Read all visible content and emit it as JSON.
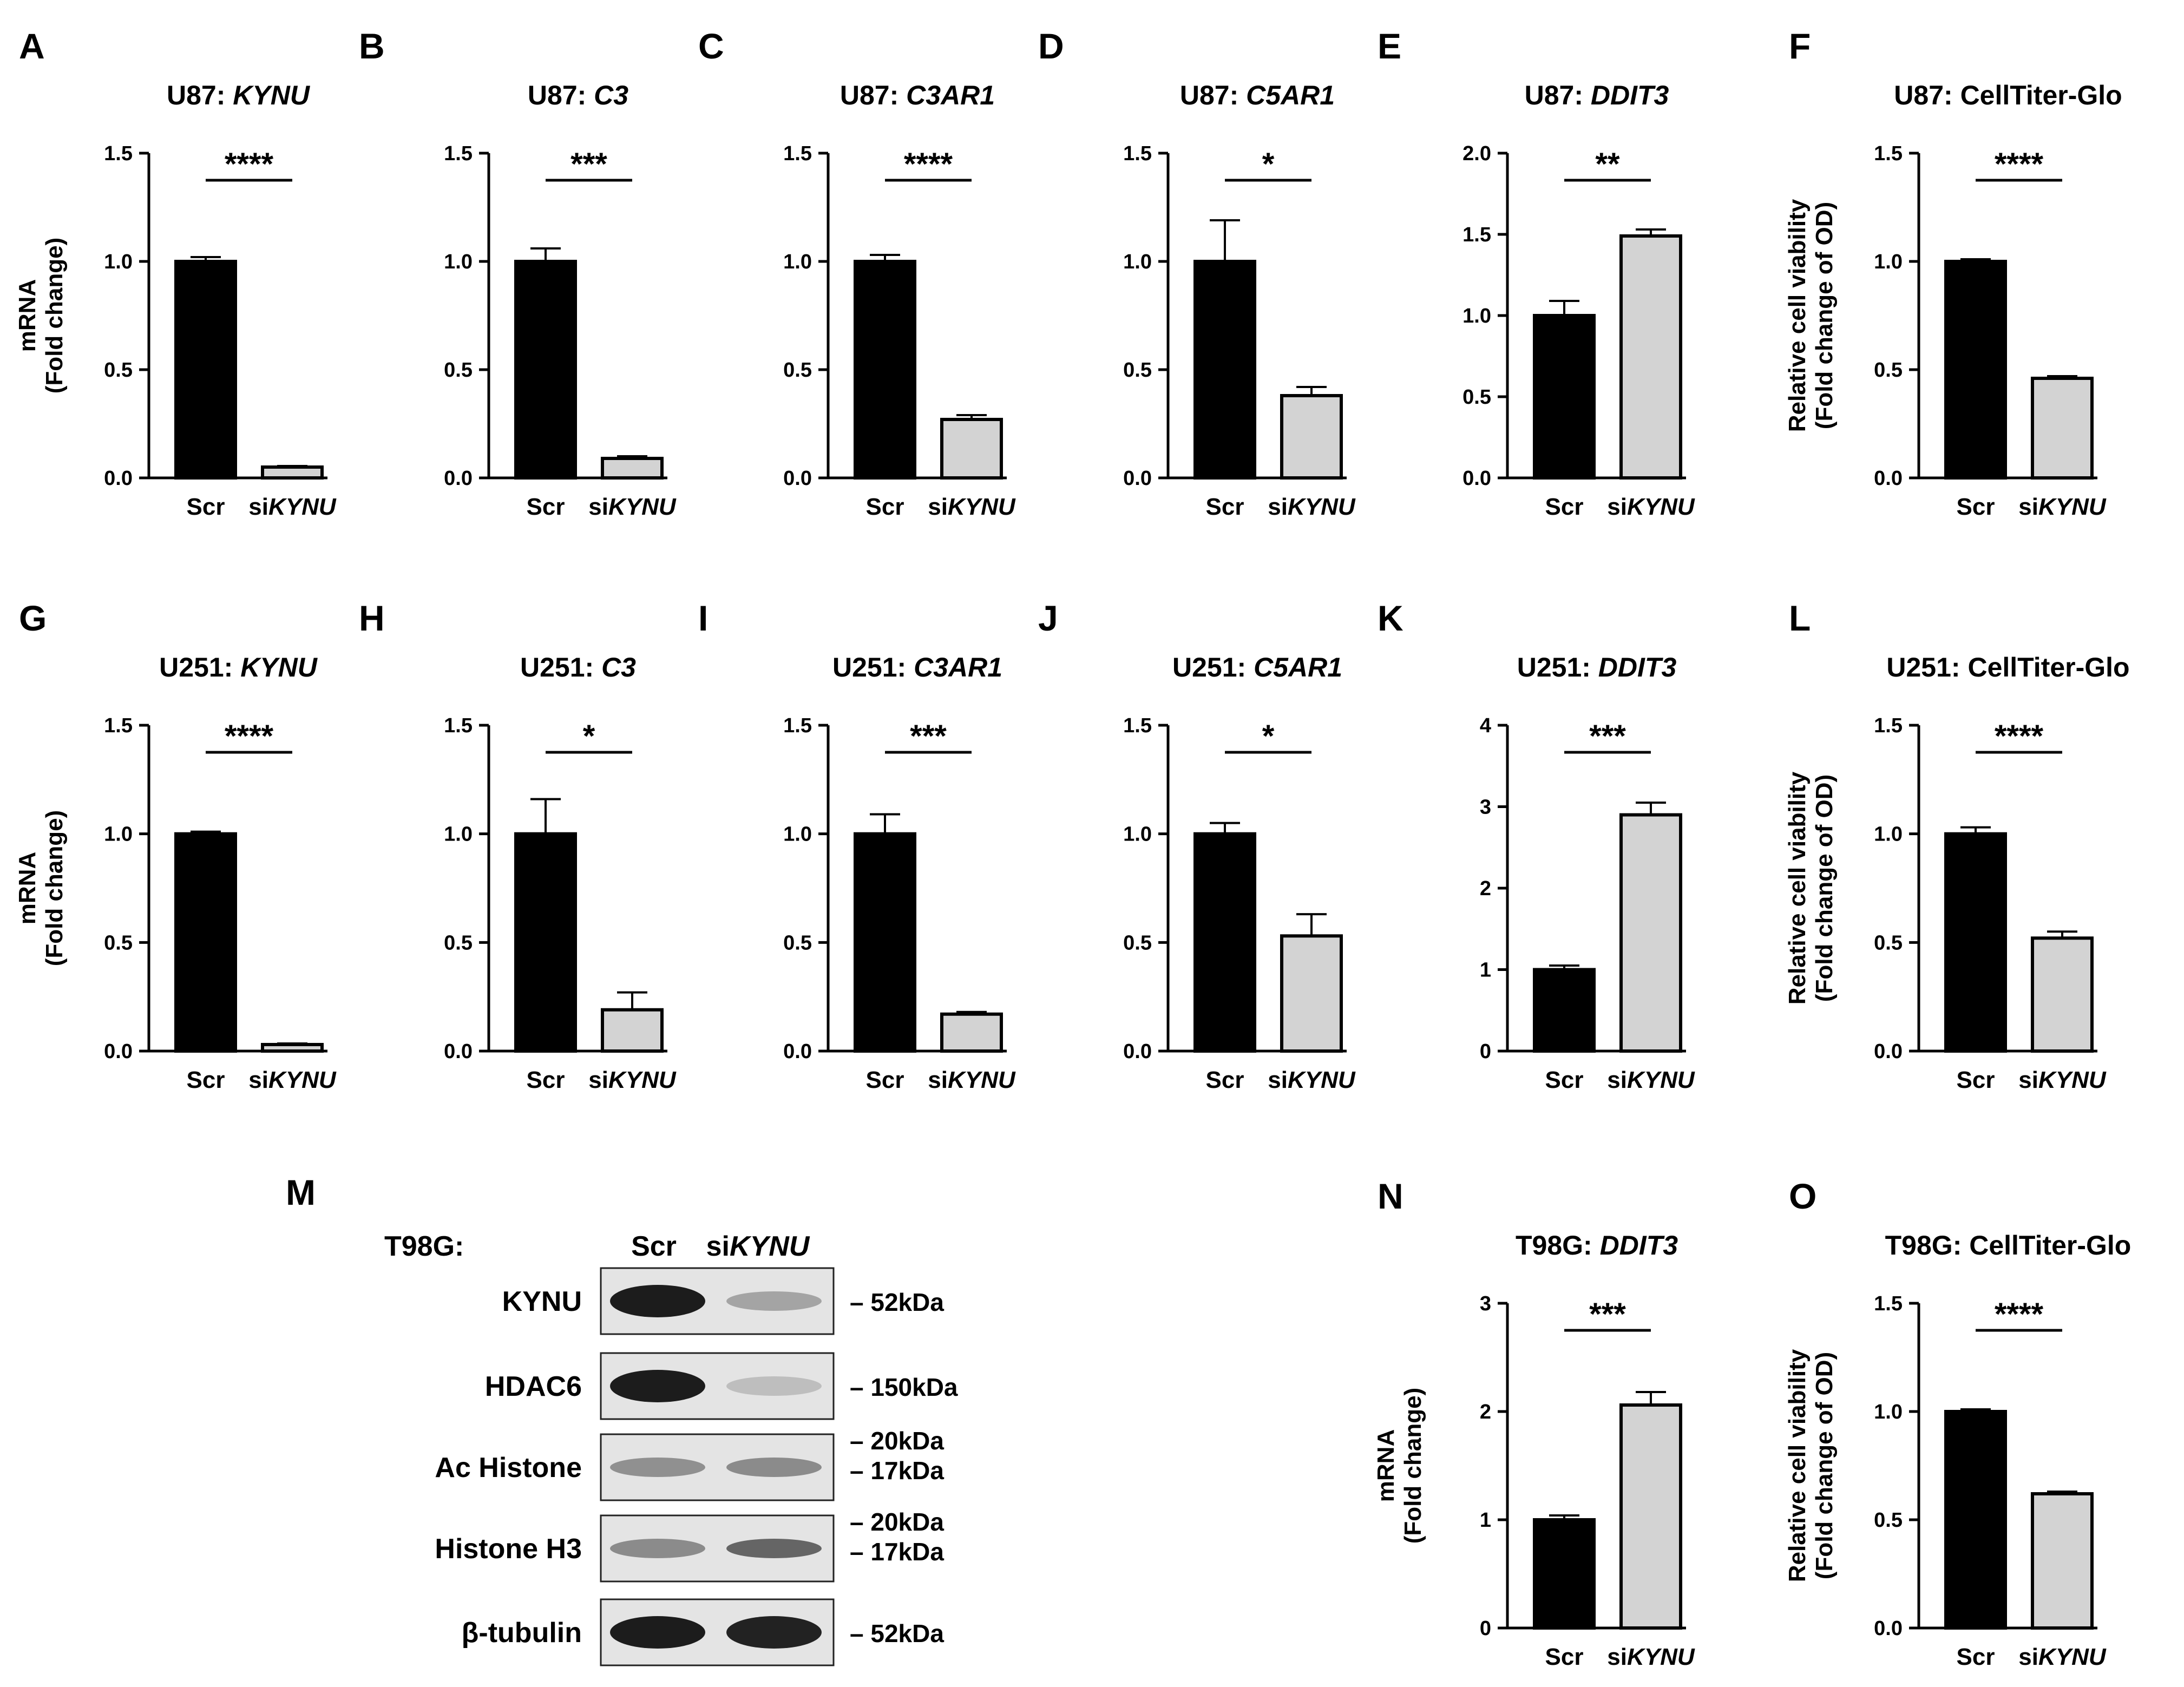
{
  "chart_data": [
    {
      "label": "A",
      "type": "bar",
      "title_prefix": "U87: ",
      "title_gene": "KYNU",
      "ylabel": [
        "mRNA",
        "(Fold change)"
      ],
      "categories": [
        {
          "prefix": "Scr",
          "gene": ""
        },
        {
          "prefix": "si",
          "gene": "KYNU"
        }
      ],
      "values": [
        1.0,
        0.05
      ],
      "errors": [
        0.02,
        0.005
      ],
      "ylim": [
        0,
        1.5
      ],
      "yticks": [
        "0.0",
        "0.5",
        "1.0",
        "1.5"
      ],
      "significance": "****"
    },
    {
      "label": "B",
      "type": "bar",
      "title_prefix": "U87: ",
      "title_gene": "C3",
      "ylabel": [],
      "categories": [
        {
          "prefix": "Scr",
          "gene": ""
        },
        {
          "prefix": "si",
          "gene": "KYNU"
        }
      ],
      "values": [
        1.0,
        0.09
      ],
      "errors": [
        0.06,
        0.01
      ],
      "ylim": [
        0,
        1.5
      ],
      "yticks": [
        "0.0",
        "0.5",
        "1.0",
        "1.5"
      ],
      "significance": "***"
    },
    {
      "label": "C",
      "type": "bar",
      "title_prefix": "U87: ",
      "title_gene": "C3AR1",
      "ylabel": [],
      "categories": [
        {
          "prefix": "Scr",
          "gene": ""
        },
        {
          "prefix": "si",
          "gene": "KYNU"
        }
      ],
      "values": [
        1.0,
        0.27
      ],
      "errors": [
        0.03,
        0.02
      ],
      "ylim": [
        0,
        1.5
      ],
      "yticks": [
        "0.0",
        "0.5",
        "1.0",
        "1.5"
      ],
      "significance": "****"
    },
    {
      "label": "D",
      "type": "bar",
      "title_prefix": "U87: ",
      "title_gene": "C5AR1",
      "ylabel": [],
      "categories": [
        {
          "prefix": "Scr",
          "gene": ""
        },
        {
          "prefix": "si",
          "gene": "KYNU"
        }
      ],
      "values": [
        1.0,
        0.38
      ],
      "errors": [
        0.19,
        0.04
      ],
      "ylim": [
        0,
        1.5
      ],
      "yticks": [
        "0.0",
        "0.5",
        "1.0",
        "1.5"
      ],
      "significance": "*"
    },
    {
      "label": "E",
      "type": "bar",
      "title_prefix": "U87: ",
      "title_gene": "DDIT3",
      "ylabel": [],
      "categories": [
        {
          "prefix": "Scr",
          "gene": ""
        },
        {
          "prefix": "si",
          "gene": "KYNU"
        }
      ],
      "values": [
        1.0,
        1.49
      ],
      "errors": [
        0.09,
        0.04
      ],
      "ylim": [
        0,
        2.0
      ],
      "yticks": [
        "0.0",
        "0.5",
        "1.0",
        "1.5",
        "2.0"
      ],
      "significance": "**"
    },
    {
      "label": "F",
      "type": "bar",
      "title_prefix": "U87: CellTiter-Glo",
      "title_gene": "",
      "ylabel": [
        "Relative cell viability",
        "(Fold change of OD)"
      ],
      "categories": [
        {
          "prefix": "Scr",
          "gene": ""
        },
        {
          "prefix": "si",
          "gene": "KYNU"
        }
      ],
      "values": [
        1.0,
        0.46
      ],
      "errors": [
        0.01,
        0.01
      ],
      "ylim": [
        0,
        1.5
      ],
      "yticks": [
        "0.0",
        "0.5",
        "1.0",
        "1.5"
      ],
      "significance": "****"
    },
    {
      "label": "G",
      "type": "bar",
      "title_prefix": "U251: ",
      "title_gene": "KYNU",
      "ylabel": [
        "mRNA",
        "(Fold change)"
      ],
      "categories": [
        {
          "prefix": "Scr",
          "gene": ""
        },
        {
          "prefix": "si",
          "gene": "KYNU"
        }
      ],
      "values": [
        1.0,
        0.03
      ],
      "errors": [
        0.01,
        0.005
      ],
      "ylim": [
        0,
        1.5
      ],
      "yticks": [
        "0.0",
        "0.5",
        "1.0",
        "1.5"
      ],
      "significance": "****"
    },
    {
      "label": "H",
      "type": "bar",
      "title_prefix": "U251: ",
      "title_gene": "C3",
      "ylabel": [],
      "categories": [
        {
          "prefix": "Scr",
          "gene": ""
        },
        {
          "prefix": "si",
          "gene": "KYNU"
        }
      ],
      "values": [
        1.0,
        0.19
      ],
      "errors": [
        0.16,
        0.08
      ],
      "ylim": [
        0,
        1.5
      ],
      "yticks": [
        "0.0",
        "0.5",
        "1.0",
        "1.5"
      ],
      "significance": "*"
    },
    {
      "label": "I",
      "type": "bar",
      "title_prefix": "U251: ",
      "title_gene": "C3AR1",
      "ylabel": [],
      "categories": [
        {
          "prefix": "Scr",
          "gene": ""
        },
        {
          "prefix": "si",
          "gene": "KYNU"
        }
      ],
      "values": [
        1.0,
        0.17
      ],
      "errors": [
        0.09,
        0.01
      ],
      "ylim": [
        0,
        1.5
      ],
      "yticks": [
        "0.0",
        "0.5",
        "1.0",
        "1.5"
      ],
      "significance": "***"
    },
    {
      "label": "J",
      "type": "bar",
      "title_prefix": "U251: ",
      "title_gene": "C5AR1",
      "ylabel": [],
      "categories": [
        {
          "prefix": "Scr",
          "gene": ""
        },
        {
          "prefix": "si",
          "gene": "KYNU"
        }
      ],
      "values": [
        1.0,
        0.53
      ],
      "errors": [
        0.05,
        0.1
      ],
      "ylim": [
        0,
        1.5
      ],
      "yticks": [
        "0.0",
        "0.5",
        "1.0",
        "1.5"
      ],
      "significance": "*"
    },
    {
      "label": "K",
      "type": "bar",
      "title_prefix": "U251: ",
      "title_gene": "DDIT3",
      "ylabel": [],
      "categories": [
        {
          "prefix": "Scr",
          "gene": ""
        },
        {
          "prefix": "si",
          "gene": "KYNU"
        }
      ],
      "values": [
        1.0,
        2.9
      ],
      "errors": [
        0.05,
        0.15
      ],
      "ylim": [
        0,
        4
      ],
      "yticks": [
        "0",
        "1",
        "2",
        "3",
        "4"
      ],
      "significance": "***"
    },
    {
      "label": "L",
      "type": "bar",
      "title_prefix": "U251: CellTiter-Glo",
      "title_gene": "",
      "ylabel": [
        "Relative cell viability",
        "(Fold change of OD)"
      ],
      "categories": [
        {
          "prefix": "Scr",
          "gene": ""
        },
        {
          "prefix": "si",
          "gene": "KYNU"
        }
      ],
      "values": [
        1.0,
        0.52
      ],
      "errors": [
        0.03,
        0.03
      ],
      "ylim": [
        0,
        1.5
      ],
      "yticks": [
        "0.0",
        "0.5",
        "1.0",
        "1.5"
      ],
      "significance": "****"
    },
    {
      "label": "N",
      "type": "bar",
      "title_prefix": "T98G: ",
      "title_gene": "DDIT3",
      "ylabel": [
        "mRNA",
        "(Fold change)"
      ],
      "categories": [
        {
          "prefix": "Scr",
          "gene": ""
        },
        {
          "prefix": "si",
          "gene": "KYNU"
        }
      ],
      "values": [
        1.0,
        2.06
      ],
      "errors": [
        0.04,
        0.12
      ],
      "ylim": [
        0,
        3
      ],
      "yticks": [
        "0",
        "1",
        "2",
        "3"
      ],
      "significance": "***"
    },
    {
      "label": "O",
      "type": "bar",
      "title_prefix": "T98G: CellTiter-Glo",
      "title_gene": "",
      "ylabel": [
        "Relative cell viability",
        "(Fold change of OD)"
      ],
      "categories": [
        {
          "prefix": "Scr",
          "gene": ""
        },
        {
          "prefix": "si",
          "gene": "KYNU"
        }
      ],
      "values": [
        1.0,
        0.62
      ],
      "errors": [
        0.01,
        0.01
      ],
      "ylim": [
        0,
        1.5
      ],
      "yticks": [
        "0.0",
        "0.5",
        "1.0",
        "1.5"
      ],
      "significance": "****"
    }
  ],
  "western_blot": {
    "label": "M",
    "cell_line": "T98G:",
    "lanes": [
      {
        "prefix": "Scr",
        "gene": ""
      },
      {
        "prefix": "si",
        "gene": "KYNU"
      }
    ],
    "rows": [
      {
        "name": "KYNU",
        "markers": [
          "– 52kDa"
        ],
        "intensity": [
          0.95,
          0.3
        ]
      },
      {
        "name": "HDAC6",
        "markers": [
          "– 150kDa"
        ],
        "intensity": [
          0.95,
          0.18
        ]
      },
      {
        "name": "Ac Histone",
        "markers": [
          "– 20kDa",
          "– 17kDa"
        ],
        "intensity": [
          0.4,
          0.42
        ]
      },
      {
        "name": "Histone H3",
        "markers": [
          "– 20kDa",
          "– 17kDa"
        ],
        "intensity": [
          0.42,
          0.6
        ]
      },
      {
        "name": "β-tubulin",
        "markers": [
          "– 52kDa"
        ],
        "intensity": [
          0.95,
          0.92
        ]
      }
    ]
  },
  "colors": {
    "control_bar": "#000000",
    "knockdown_bar": "#d3d3d3",
    "axis": "#000000",
    "blot_background": "#e4e4e4",
    "band": "#111111"
  }
}
